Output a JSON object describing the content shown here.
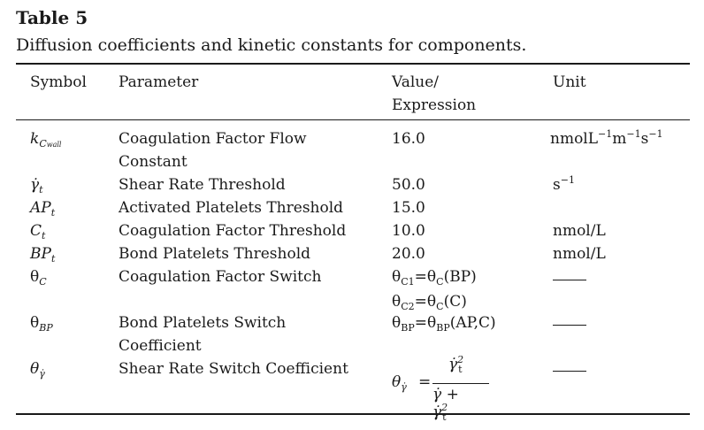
{
  "table": {
    "title": "Table 5",
    "caption": "Diffusion coefficients and kinetic constants for components.",
    "headers": {
      "symbol": "Symbol",
      "parameter": "Parameter",
      "value_line1": "Value/",
      "value_line2": "Expression",
      "unit": "Unit"
    },
    "rows": [
      {
        "symbol": "k",
        "symbol_sub": "C",
        "symbol_subsub": "wall",
        "parameter_line1": "Coagulation Factor Flow",
        "parameter_line2": "Constant",
        "value": "16.0",
        "unit": "nmolL",
        "unit_sup1": "−1",
        "unit_mid": "m",
        "unit_sup2": "−1",
        "unit_end": "s",
        "unit_sup3": "−1"
      },
      {
        "symbol": "γ̇",
        "symbol_sub": "t",
        "parameter_line1": "Shear Rate Threshold",
        "value": "50.0",
        "unit": "s",
        "unit_sup": "−1"
      },
      {
        "symbol": "AP",
        "symbol_sub": "t",
        "parameter_line1": "Activated Platelets Threshold",
        "value": "15.0",
        "unit": ""
      },
      {
        "symbol": "C",
        "symbol_sub": "t",
        "parameter_line1": "Coagulation Factor Threshold",
        "value": "10.0",
        "unit": "nmol/L"
      },
      {
        "symbol": "BP",
        "symbol_sub": "t",
        "parameter_line1": "Bond Platelets Threshold",
        "value": "20.0",
        "unit": "nmol/L"
      },
      {
        "symbol": "θ",
        "symbol_sub": "C",
        "parameter_line1": "Coagulation Factor Switch",
        "value_line1_a": "θ",
        "value_line1_sub_a": "C1",
        "value_line1_b": "=θ",
        "value_line1_sub_b": "C",
        "value_line1_c": "(BP)",
        "value_line2_a": "θ",
        "value_line2_sub_a": "C2",
        "value_line2_b": "=θ",
        "value_line2_sub_b": "C",
        "value_line2_c": "(C)"
      },
      {
        "symbol": "θ",
        "symbol_sub": "BP",
        "parameter_line1": "Bond Platelets Switch",
        "parameter_line2": "Coefficient",
        "value_a": "θ",
        "value_sub_a": "BP",
        "value_b": "=θ",
        "value_sub_b": "BP",
        "value_c": "(AP,C)"
      },
      {
        "symbol": "θ",
        "symbol_sub": "γ̇",
        "parameter_line1": "Shear Rate Switch Coefficient",
        "formula_lhs": "θ",
        "formula_lhs_sub": "γ̇",
        "formula_eq": "=",
        "formula_num": "γ̇",
        "formula_num_sub": "t",
        "formula_num_sup": "2",
        "formula_den_a": "γ̇ + γ̇",
        "formula_den_sub": "t",
        "formula_den_sup": "2"
      }
    ]
  }
}
